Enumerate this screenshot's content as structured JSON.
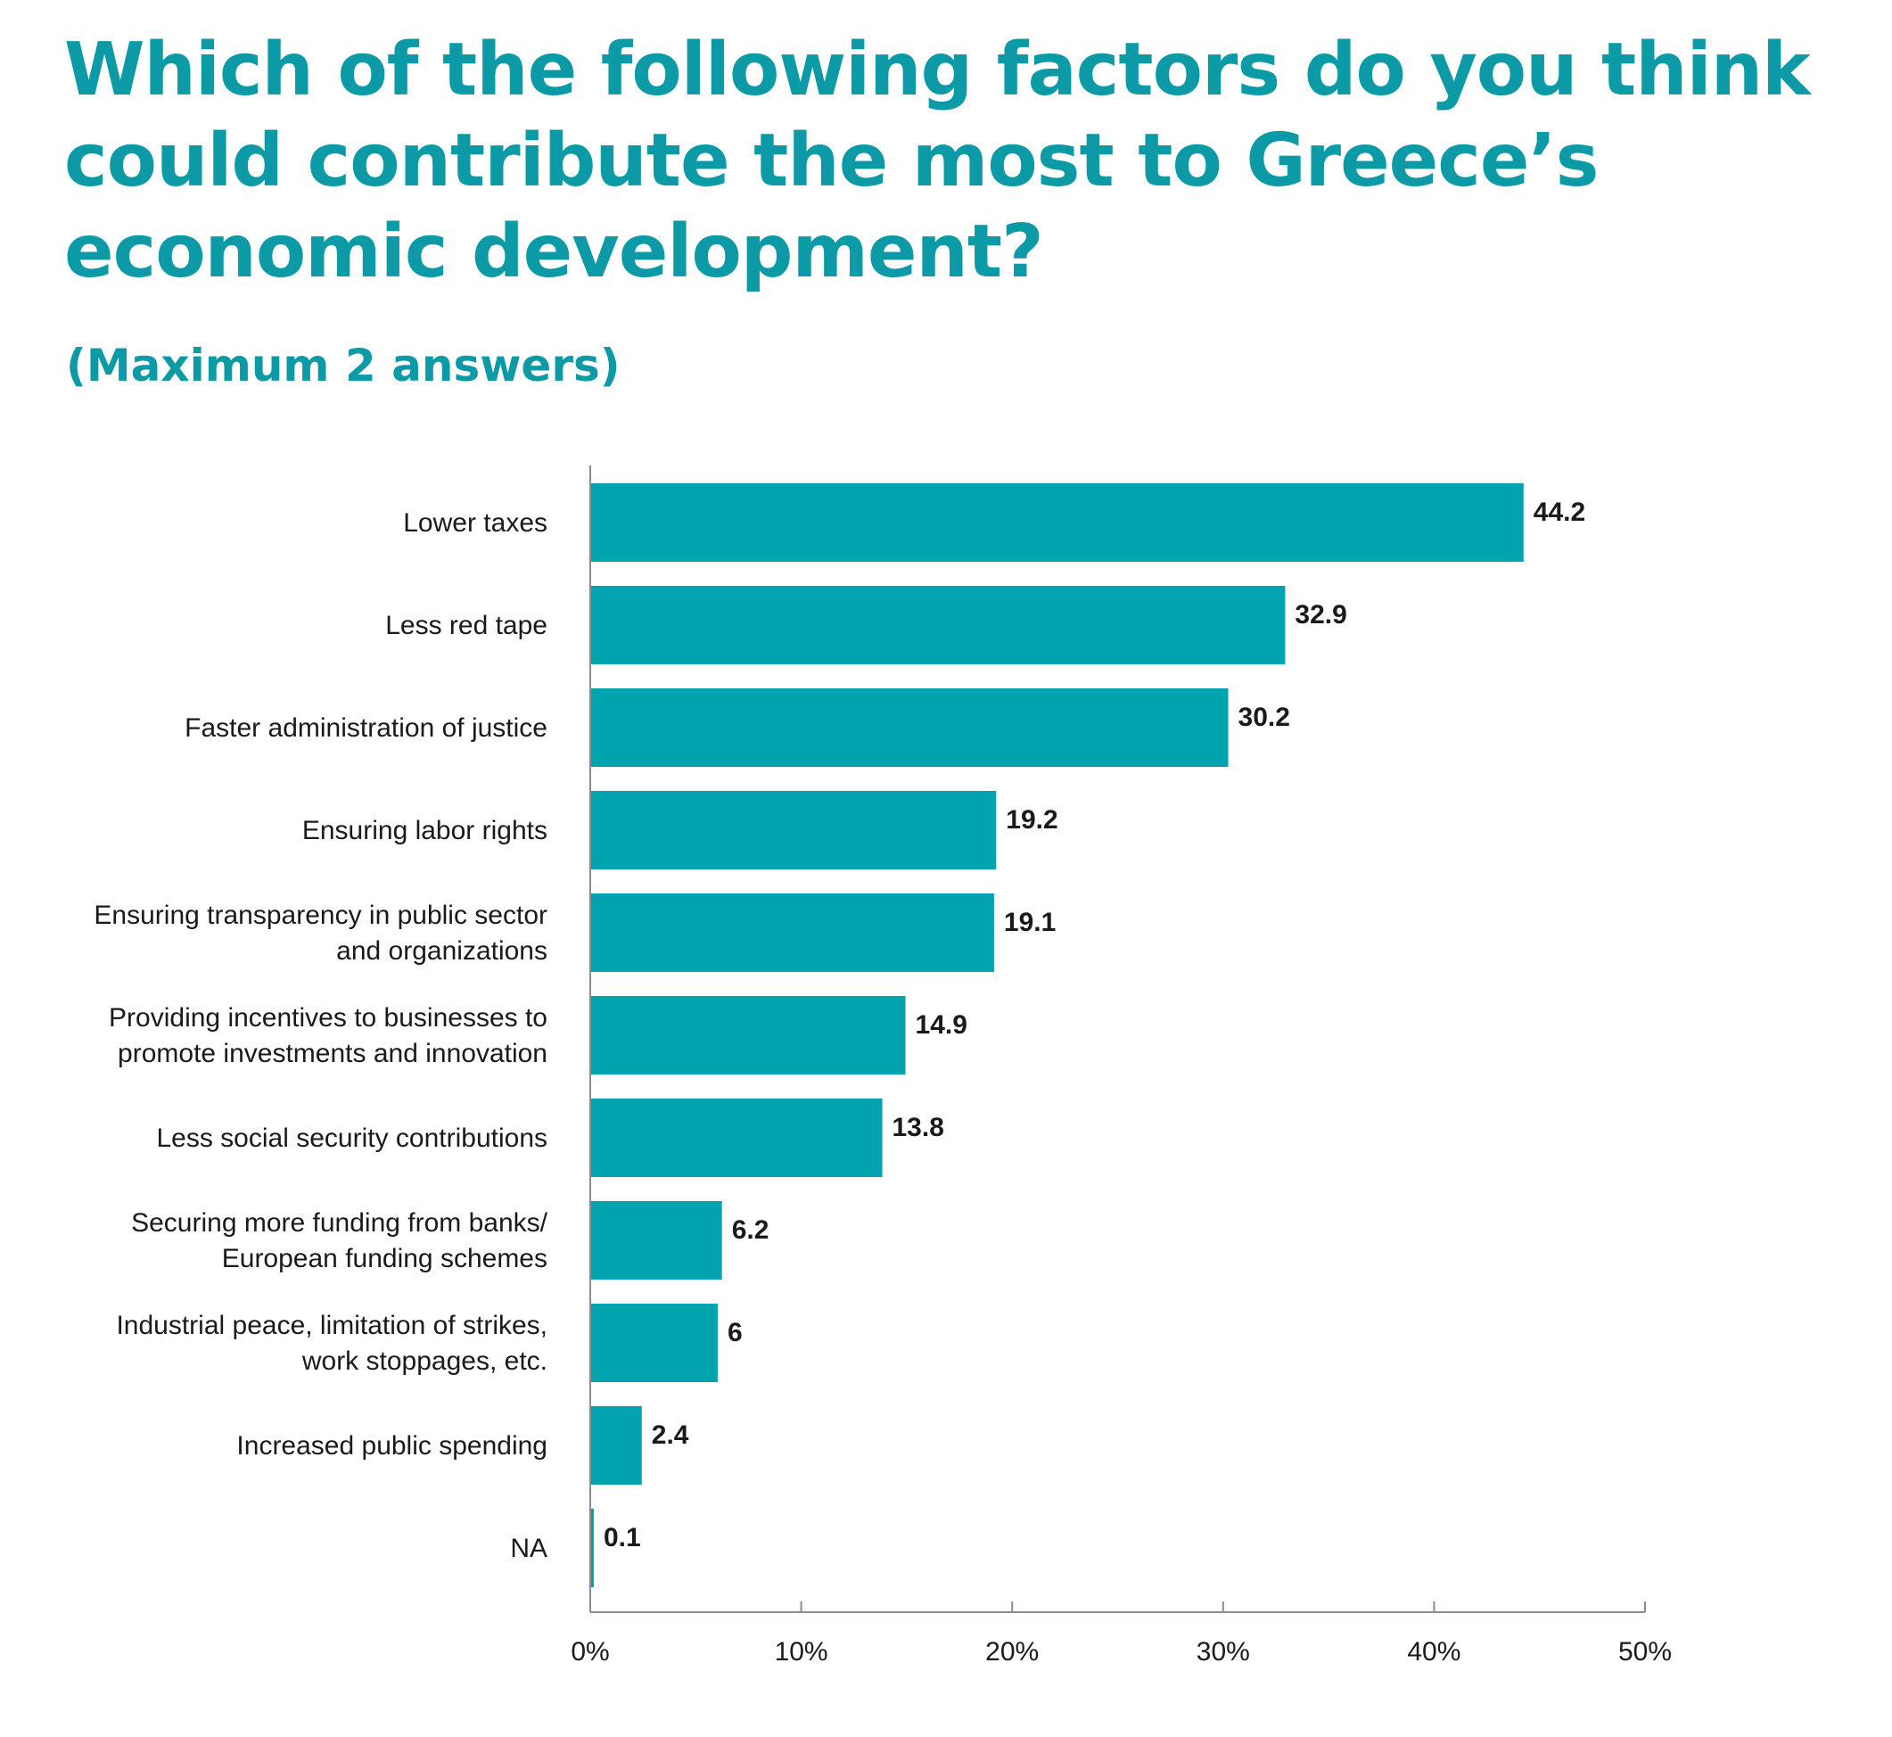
{
  "title": "Which of the following factors do you think could contribute the most to Greece’s economic development?",
  "subtitle": "(Maximum 2 answers)",
  "chart_data": {
    "type": "bar",
    "orientation": "horizontal",
    "categories": [
      [
        "Lower taxes"
      ],
      [
        "Less red tape"
      ],
      [
        "Faster administration of justice"
      ],
      [
        "Ensuring labor rights"
      ],
      [
        "Ensuring transparency in public sector",
        "and organizations"
      ],
      [
        "Providing incentives to businesses to",
        "promote investments and innovation"
      ],
      [
        "Less social security contributions"
      ],
      [
        "Securing more funding from banks/",
        "European funding schemes"
      ],
      [
        "Industrial peace, limitation of strikes,",
        "work stoppages, etc."
      ],
      [
        "Increased public spending"
      ],
      [
        "NA"
      ]
    ],
    "values": [
      44.2,
      32.9,
      30.2,
      19.2,
      19.1,
      14.9,
      13.8,
      6.2,
      6,
      2.4,
      0.1
    ],
    "value_labels": [
      "44.2",
      "32.9",
      "30.2",
      "19.2",
      "19.1",
      "14.9",
      "13.8",
      "6.2",
      "6",
      "2.4",
      "0.1"
    ],
    "xlim": [
      0,
      50
    ],
    "xticks": [
      "0%",
      "10%",
      "20%",
      "30%",
      "40%",
      "50%"
    ],
    "bar_color": "#00a3ae",
    "grid": false
  }
}
